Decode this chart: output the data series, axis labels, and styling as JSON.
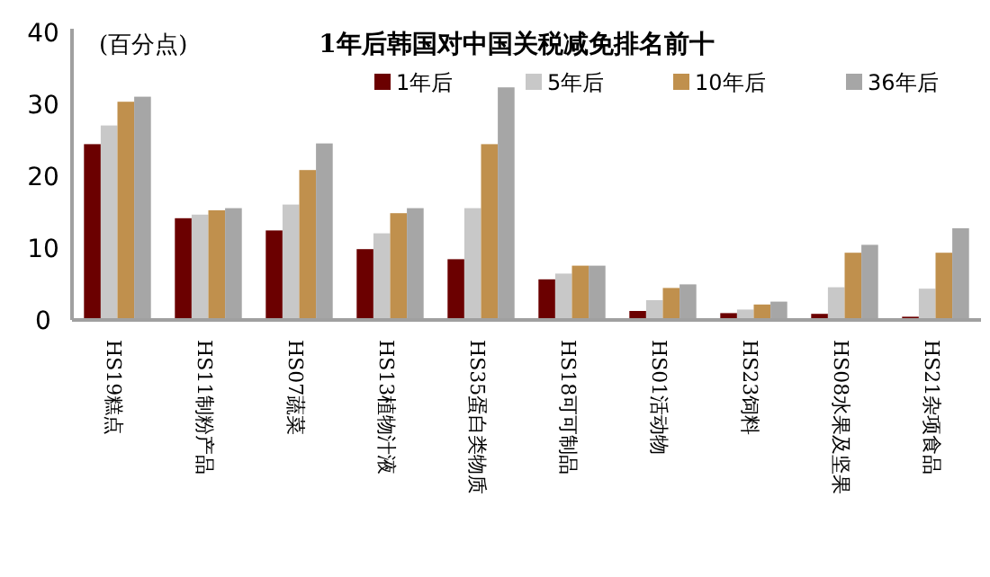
{
  "chart_data": {
    "type": "bar",
    "title": "1年后韩国对中国关税减免排名前十",
    "ylabel": "(百分点)",
    "categories": [
      "HS19糕点",
      "HS11制粉产品",
      "HS07蔬菜",
      "HS13植物汁液",
      "HS35蛋白类物质",
      "HS18可可制品",
      "HS01活动物",
      "HS23饲料",
      "HS08水果及坚果",
      "HS21杂项食品"
    ],
    "series": [
      {
        "name": "1年后",
        "color": "#6b0000",
        "values": [
          24.2,
          13.9,
          12.2,
          9.6,
          8.2,
          5.4,
          1.0,
          0.7,
          0.6,
          0.2
        ]
      },
      {
        "name": "5年后",
        "color": "#c8c8c8",
        "values": [
          26.8,
          14.4,
          15.8,
          11.8,
          15.3,
          6.2,
          2.5,
          1.2,
          4.3,
          4.1
        ]
      },
      {
        "name": "10年后",
        "color": "#c0904d",
        "values": [
          30.1,
          15.0,
          20.6,
          14.6,
          24.2,
          7.3,
          4.2,
          1.9,
          9.1,
          9.1
        ]
      },
      {
        "name": "36年后",
        "color": "#a6a6a6",
        "values": [
          30.8,
          15.3,
          24.3,
          15.3,
          32.1,
          7.3,
          4.7,
          2.3,
          10.2,
          12.5
        ]
      }
    ],
    "ylim": [
      0,
      40
    ],
    "yticks": [
      0,
      10,
      20,
      30,
      40
    ],
    "legend": "top right"
  }
}
